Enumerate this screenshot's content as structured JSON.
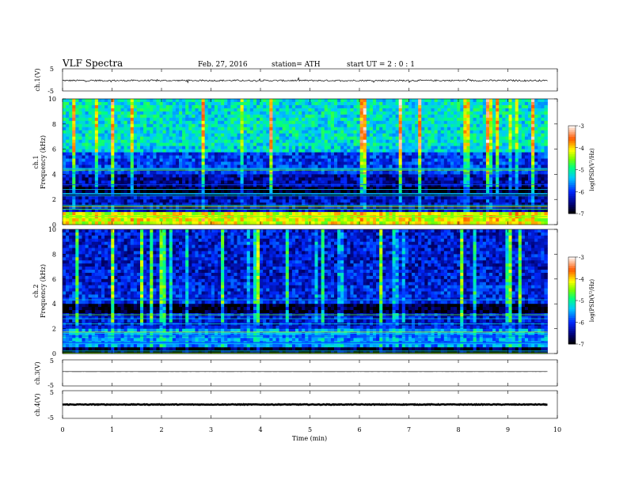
{
  "header": {
    "title": "VLF  Spectra",
    "date": "Feb. 27, 2016",
    "station": "station= ATH",
    "start": "start  UT =   2  : 0  : 1"
  },
  "chart_data": [
    {
      "type": "line",
      "id": "ch1",
      "ylabel": "ch.1(V)",
      "ylim": [
        -5,
        5
      ],
      "yticks": [
        "5",
        "-5"
      ],
      "xlim": [
        0,
        10
      ],
      "series": [
        {
          "mean": -0.3,
          "noise": 0.35
        }
      ]
    },
    {
      "type": "heatmap",
      "id": "ch1-spectrogram",
      "ylabel": "Frequency  (kHz)",
      "channel_label": "ch.1",
      "ylim": [
        0,
        10
      ],
      "yticks": [
        "0",
        "2",
        "4",
        "6",
        "8",
        "10"
      ],
      "xlim": [
        0,
        10
      ],
      "colorbar": {
        "label": "log(PSD(V²/Hz)",
        "ticks": [
          "-7",
          "-6",
          "-5",
          "-4",
          "-3"
        ],
        "range": [
          -7,
          -3
        ]
      },
      "band_levels": [
        {
          "fmin": 0,
          "fmax": 0.9,
          "level": -4.2
        },
        {
          "fmin": 0.9,
          "fmax": 2.2,
          "level": -6.3
        },
        {
          "fmin": 2.2,
          "fmax": 3.0,
          "level": -6.9
        },
        {
          "fmin": 3.0,
          "fmax": 4.0,
          "level": -6.4
        },
        {
          "fmin": 4.0,
          "fmax": 5.8,
          "level": -6.0
        },
        {
          "fmin": 5.8,
          "fmax": 6.2,
          "level": -5.3
        },
        {
          "fmin": 6.2,
          "fmax": 10,
          "level": -5.2
        }
      ]
    },
    {
      "type": "heatmap",
      "id": "ch2-spectrogram",
      "ylabel": "Frequency  (kHz)",
      "channel_label": "ch.2",
      "ylim": [
        0,
        10
      ],
      "yticks": [
        "0",
        "2",
        "4",
        "6",
        "8",
        "10"
      ],
      "xlim": [
        0,
        10
      ],
      "colorbar": {
        "label": "log(PSD(V²/Hz)",
        "ticks": [
          "-7",
          "-6",
          "-5",
          "-4",
          "-3"
        ],
        "range": [
          -7,
          -3
        ]
      },
      "band_levels": [
        {
          "fmin": 0,
          "fmax": 0.5,
          "level": -6.8
        },
        {
          "fmin": 0.5,
          "fmax": 2.0,
          "level": -5.6
        },
        {
          "fmin": 2.0,
          "fmax": 3.3,
          "level": -6.2
        },
        {
          "fmin": 3.3,
          "fmax": 4.0,
          "level": -6.9
        },
        {
          "fmin": 4.0,
          "fmax": 5.5,
          "level": -6.1
        },
        {
          "fmin": 5.5,
          "fmax": 10,
          "level": -6.2
        }
      ]
    },
    {
      "type": "line",
      "id": "ch3",
      "ylabel": "ch.3(V)",
      "ylim": [
        -5,
        5
      ],
      "yticks": [
        "5",
        "-5"
      ],
      "xlim": [
        0,
        10
      ],
      "series": [
        {
          "mean": 0.5,
          "noise": 0.03
        }
      ]
    },
    {
      "type": "line",
      "id": "ch4",
      "ylabel": "ch.4(V)",
      "ylim": [
        -5,
        5
      ],
      "yticks": [
        "5",
        "-5"
      ],
      "xlim": [
        0,
        10
      ],
      "series": [
        {
          "mean": 0.0,
          "noise": 0.12
        }
      ]
    }
  ],
  "xaxis": {
    "label": "Time  (min)",
    "ticks": [
      "0",
      "1",
      "2",
      "3",
      "4",
      "5",
      "6",
      "7",
      "8",
      "9",
      "10"
    ],
    "data_end": 9.8
  }
}
